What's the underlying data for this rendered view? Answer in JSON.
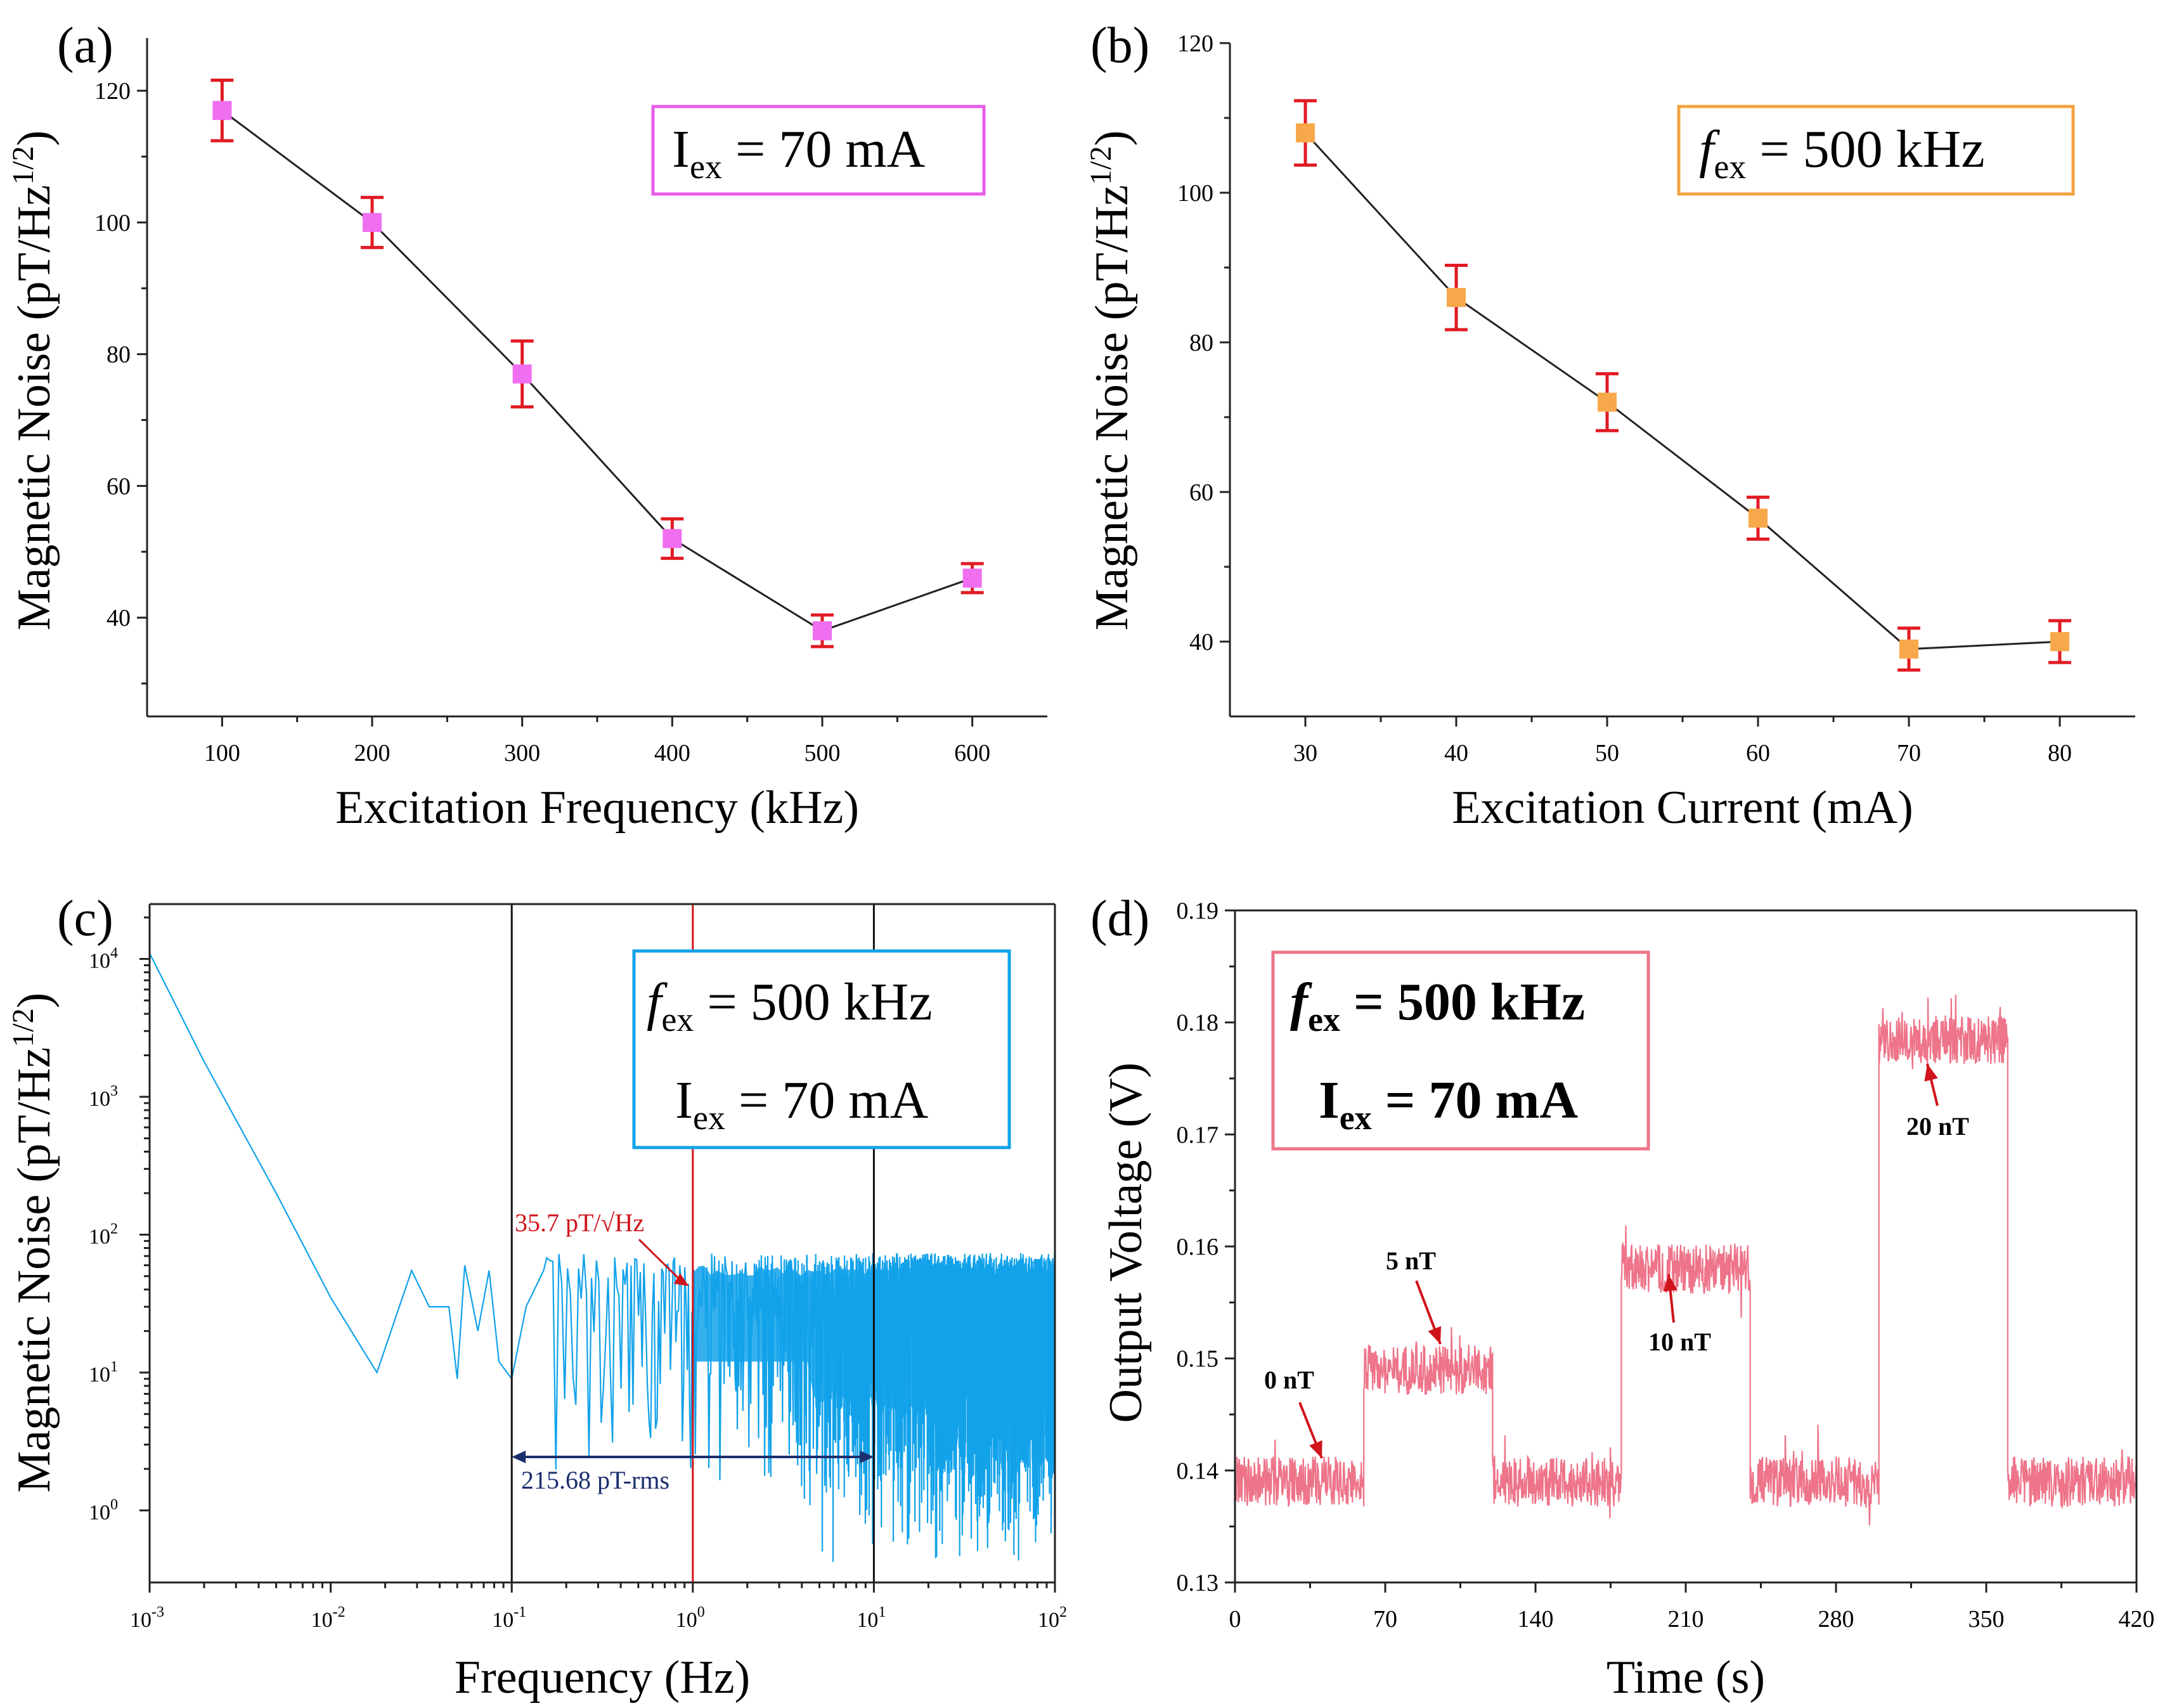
{
  "colors": {
    "magenta_marker": "#f06ff0",
    "magenta_box": "#e85ce8",
    "orange_marker": "#f7a84a",
    "orange_box": "#f3a443",
    "errorbar": "#e01b24",
    "blue": "#12a2ea",
    "pink": "#ee7489",
    "red_line": "#d0141b",
    "navy": "#1b2f6e"
  },
  "panels": {
    "a": {
      "label": "(a)",
      "box_main": "I",
      "box_sub": "ex",
      "box_rest": " = 70 mA"
    },
    "b": {
      "label": "(b)",
      "box_main": "f",
      "box_sub": "ex",
      "box_rest": " = 500 kHz"
    },
    "c": {
      "label": "(c)",
      "box_line1_main": "f",
      "box_line1_sub": "ex",
      "box_line1_rest": " = 500 kHz",
      "box_line2_main": "I",
      "box_line2_sub": "ex",
      "box_line2_rest": " = 70 mA",
      "annotation_noise": "35.7 pT/√Hz",
      "annotation_rms": "215.68 pT-rms"
    },
    "d": {
      "label": "(d)",
      "box_line1_main": "f",
      "box_line1_sub": "ex",
      "box_line1_rest": " = 500 kHz",
      "box_line2_main": "I",
      "box_line2_sub": "ex",
      "box_line2_rest": " = 70 mA",
      "step_labels": [
        "0 nT",
        "5 nT",
        "10 nT",
        "20 nT"
      ]
    }
  },
  "chart_data": [
    {
      "id": "a",
      "type": "line",
      "xlabel": "Excitation Frequency (kHz)",
      "ylabel": "Magnetic Noise (pT/Hz1/2)",
      "xlim": [
        50,
        650
      ],
      "ylim": [
        25,
        128
      ],
      "xticks": [
        100,
        200,
        300,
        400,
        500,
        600
      ],
      "yticks": [
        40,
        60,
        80,
        100,
        120
      ],
      "x": [
        100,
        200,
        300,
        400,
        500,
        600
      ],
      "y": [
        117,
        100,
        77,
        52,
        38,
        46
      ],
      "err": [
        4.6,
        3.8,
        5.0,
        3.0,
        2.4,
        2.2
      ]
    },
    {
      "id": "b",
      "type": "line",
      "xlabel": "Excitation Current (mA)",
      "ylabel": "Magnetic Noise (pT/Hz1/2)",
      "xlim": [
        25,
        85
      ],
      "ylim": [
        30,
        120
      ],
      "xticks": [
        30,
        40,
        50,
        60,
        70,
        80
      ],
      "yticks": [
        40,
        60,
        80,
        100,
        120
      ],
      "x": [
        30,
        40,
        50,
        60,
        70,
        80
      ],
      "y": [
        108,
        86,
        72,
        56.5,
        39,
        40
      ],
      "err": [
        4.3,
        4.3,
        3.8,
        2.8,
        2.8,
        2.8
      ]
    },
    {
      "id": "c",
      "type": "line",
      "xlabel": "Frequency (Hz)",
      "ylabel": "Magnetic Noise (pT/Hz1/2)",
      "xscale": "log",
      "yscale": "log",
      "xlim": [
        0.001,
        100
      ],
      "ylim": [
        0.3,
        25000
      ],
      "xticks": [
        "10-3",
        "10-2",
        "10-1",
        "100",
        "101",
        "102"
      ],
      "yticks": [
        "100",
        "101",
        "102",
        "103",
        "104"
      ],
      "vertical_lines": [
        0.1,
        1,
        10
      ],
      "rms_band_hz": [
        0.1,
        10
      ],
      "noise_at_1hz": 35.7,
      "rms": 215.68,
      "spectrum_x": [
        0.001,
        0.002,
        0.005,
        0.01,
        0.018,
        0.028,
        0.035,
        0.045,
        0.05,
        0.055,
        0.065,
        0.075,
        0.085,
        0.1,
        0.12,
        0.15
      ],
      "spectrum_y": [
        11000,
        1800,
        200,
        35,
        10,
        55,
        30,
        30,
        9,
        60,
        20,
        55,
        12,
        9,
        30,
        55
      ]
    },
    {
      "id": "d",
      "type": "line",
      "xlabel": "Time (s)",
      "ylabel": "Output Voltage (V)",
      "xlim": [
        0,
        420
      ],
      "ylim": [
        0.13,
        0.19
      ],
      "xticks": [
        0,
        70,
        140,
        210,
        280,
        350,
        420
      ],
      "yticks": [
        0.13,
        0.14,
        0.15,
        0.16,
        0.17,
        0.18,
        0.19
      ],
      "segments": [
        {
          "t0": 0,
          "t1": 60,
          "v": 0.139
        },
        {
          "t0": 60,
          "t1": 120,
          "v": 0.149
        },
        {
          "t0": 120,
          "t1": 180,
          "v": 0.139
        },
        {
          "t0": 180,
          "t1": 240,
          "v": 0.158
        },
        {
          "t0": 240,
          "t1": 300,
          "v": 0.139
        },
        {
          "t0": 300,
          "t1": 360,
          "v": 0.1785
        },
        {
          "t0": 360,
          "t1": 420,
          "v": 0.139
        }
      ]
    }
  ]
}
